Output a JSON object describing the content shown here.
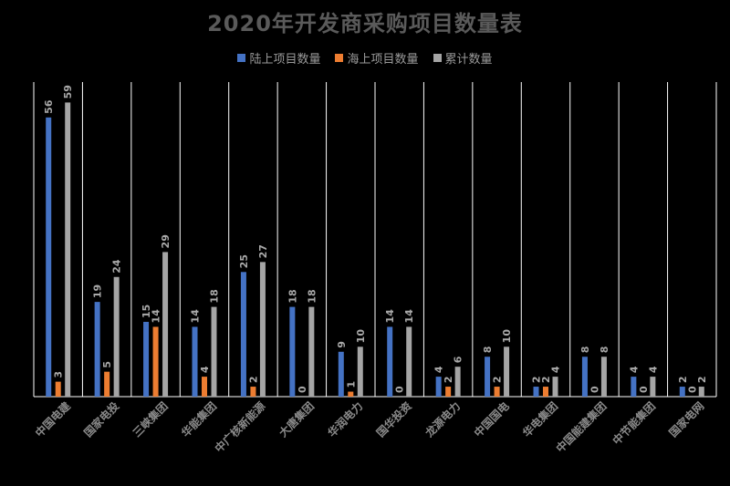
{
  "chart_data": {
    "type": "bar",
    "title": "2020年开发商采购项目数量表",
    "categories": [
      "中国电建",
      "国家电投",
      "三峡集团",
      "华能集团",
      "中广核新能源",
      "大唐集团",
      "华润电力",
      "国华投资",
      "龙源电力",
      "中国国电",
      "华电集团",
      "中国能建集团",
      "中节能集团",
      "国家电网"
    ],
    "series": [
      {
        "name": "陆上项目数量",
        "color": "#4472C4",
        "values": [
          56,
          19,
          15,
          14,
          25,
          18,
          9,
          14,
          4,
          8,
          2,
          8,
          4,
          2
        ]
      },
      {
        "name": "海上项目数量",
        "color": "#ED7D31",
        "values": [
          3,
          5,
          14,
          4,
          2,
          0,
          1,
          0,
          2,
          2,
          2,
          0,
          0,
          0
        ]
      },
      {
        "name": "累计数量",
        "color": "#A5A5A5",
        "values": [
          59,
          24,
          29,
          18,
          27,
          18,
          10,
          14,
          6,
          10,
          4,
          8,
          4,
          2
        ]
      }
    ],
    "ylim": [
      0,
      62
    ],
    "grid": "vertical separators"
  }
}
